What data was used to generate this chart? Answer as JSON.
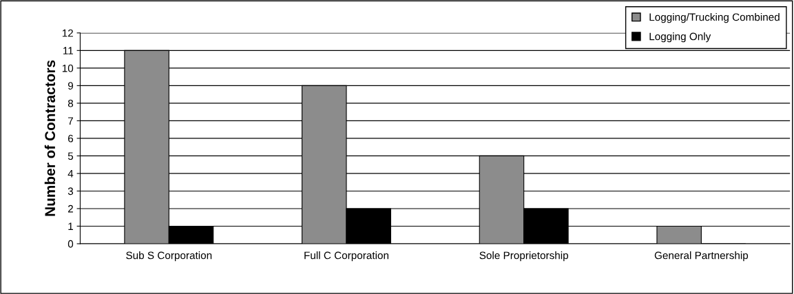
{
  "chart_data": {
    "type": "bar",
    "ylabel": "Number of Contractors",
    "categories": [
      "Sub S Corporation",
      "Full C Corporation",
      "Sole Proprietorship",
      "General Partnership"
    ],
    "series": [
      {
        "name": "Logging/Trucking Combined",
        "color": "#8c8c8c",
        "values": [
          11,
          9,
          5,
          1
        ]
      },
      {
        "name": "Logging Only",
        "color": "#000000",
        "values": [
          1,
          2,
          2,
          0
        ]
      }
    ],
    "ylim": [
      0,
      12
    ],
    "yticks": [
      0,
      1,
      2,
      3,
      4,
      5,
      6,
      7,
      8,
      9,
      10,
      11,
      12
    ],
    "grid": "y",
    "legend": "top right"
  }
}
